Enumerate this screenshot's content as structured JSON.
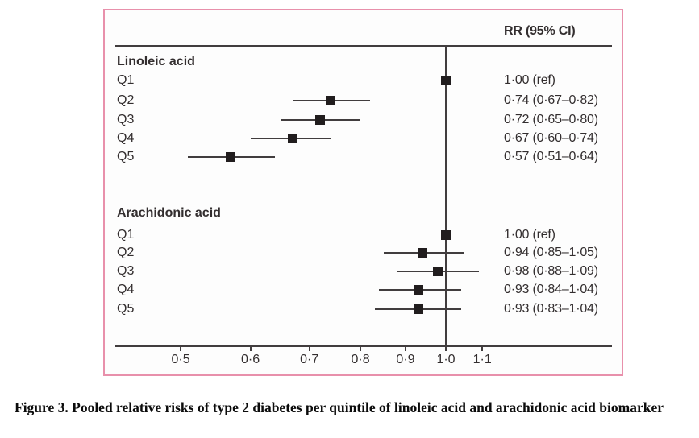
{
  "figure": {
    "colors": {
      "border": "#e890ab",
      "panel_background": "#fdfdfd",
      "ink": "#332e2f",
      "line": "#413d3e",
      "marker": "#211d1e"
    }
  },
  "chart_data": {
    "type": "forest",
    "effect_measure": "RR",
    "scale": "log",
    "header": "RR (95% CI)",
    "reference_value": 1.0,
    "xlim": [
      0.42,
      1.54
    ],
    "x_ticks": [
      0.5,
      0.6,
      0.7,
      0.8,
      0.9,
      1.0,
      1.1
    ],
    "x_tick_labels": [
      "0·5",
      "0·6",
      "0·7",
      "0·8",
      "0·9",
      "1·0",
      "1·1"
    ],
    "grid": false,
    "groups": [
      {
        "name": "Linoleic acid",
        "rows": [
          {
            "label": "Q1",
            "rr": 1.0,
            "ci_low": null,
            "ci_high": null,
            "display": "1·00 (ref)"
          },
          {
            "label": "Q2",
            "rr": 0.74,
            "ci_low": 0.67,
            "ci_high": 0.82,
            "display": "0·74 (0·67–0·82)"
          },
          {
            "label": "Q3",
            "rr": 0.72,
            "ci_low": 0.65,
            "ci_high": 0.8,
            "display": "0·72 (0·65–0·80)"
          },
          {
            "label": "Q4",
            "rr": 0.67,
            "ci_low": 0.6,
            "ci_high": 0.74,
            "display": "0·67 (0·60–0·74)"
          },
          {
            "label": "Q5",
            "rr": 0.57,
            "ci_low": 0.51,
            "ci_high": 0.64,
            "display": "0·57 (0·51–0·64)"
          }
        ]
      },
      {
        "name": "Arachidonic acid",
        "rows": [
          {
            "label": "Q1",
            "rr": 1.0,
            "ci_low": null,
            "ci_high": null,
            "display": "1·00 (ref)"
          },
          {
            "label": "Q2",
            "rr": 0.94,
            "ci_low": 0.85,
            "ci_high": 1.05,
            "display": "0·94 (0·85–1·05)"
          },
          {
            "label": "Q3",
            "rr": 0.98,
            "ci_low": 0.88,
            "ci_high": 1.09,
            "display": "0·98 (0·88–1·09)"
          },
          {
            "label": "Q4",
            "rr": 0.93,
            "ci_low": 0.84,
            "ci_high": 1.04,
            "display": "0·93 (0·84–1·04)"
          },
          {
            "label": "Q5",
            "rr": 0.93,
            "ci_low": 0.83,
            "ci_high": 1.04,
            "display": "0·93 (0·83–1·04)"
          }
        ]
      }
    ]
  },
  "caption": {
    "text": "Figure 3. Pooled relative risks of type 2 diabetes per quintile of linoleic acid and arachidonic acid biomarker"
  }
}
